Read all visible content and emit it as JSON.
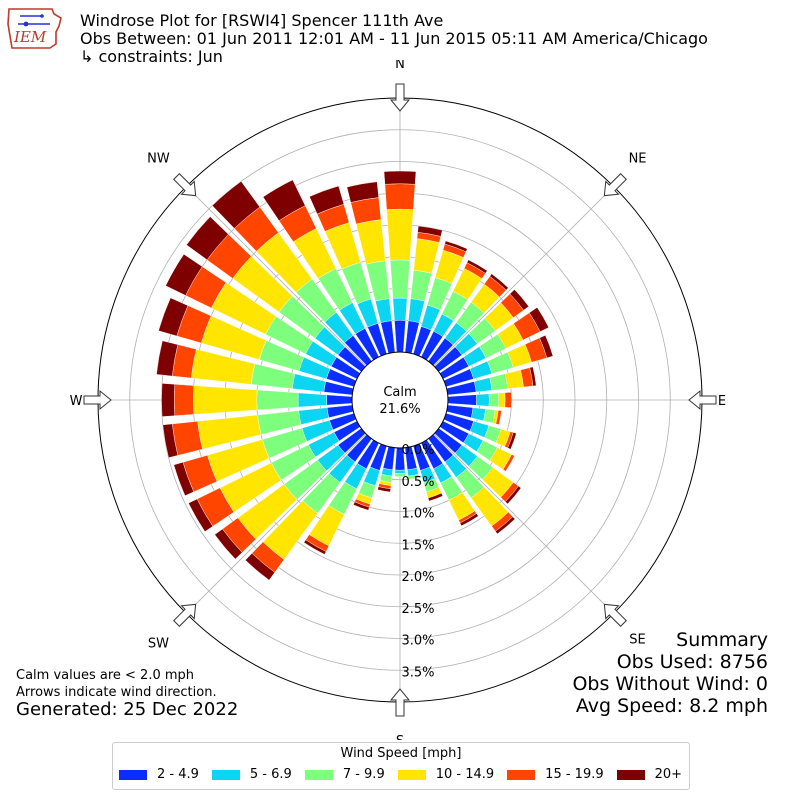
{
  "logo": {
    "text": "IEM"
  },
  "header": {
    "title": "Windrose Plot for [RSWI4] Spencer 111th Ave",
    "obs_between": "Obs Between: 01 Jun 2011 12:01 AM - 11 Jun 2015 05:11 AM America/Chicago",
    "constraints": "↳ constraints: Jun"
  },
  "notes": {
    "calm_note": "Calm values are < 2.0 mph",
    "arrow_note": "Arrows indicate wind direction.",
    "generated": "Generated: 25 Dec 2022"
  },
  "summary": {
    "title": "Summary",
    "obs_used": "Obs Used: 8756",
    "obs_without_wind": "Obs Without Wind: 0",
    "avg_speed": "Avg Speed: 8.2 mph"
  },
  "legend": {
    "title": "Wind Speed [mph]",
    "items": [
      {
        "label": "2 - 4.9",
        "color": "#0b2dff"
      },
      {
        "label": "5 - 6.9",
        "color": "#0bd5f0"
      },
      {
        "label": "7 - 9.9",
        "color": "#7dff7d"
      },
      {
        "label": "10 - 14.9",
        "color": "#ffe500"
      },
      {
        "label": "15 - 19.9",
        "color": "#ff4500"
      },
      {
        "label": "20+",
        "color": "#7f0000"
      }
    ]
  },
  "chart_data": {
    "type": "windrose",
    "calm_label": "Calm",
    "calm_value": "21.6%",
    "directions_compass": [
      "N",
      "NE",
      "E",
      "SE",
      "S",
      "SW",
      "W",
      "NW"
    ],
    "radial_ticks": [
      "0.0%",
      "0.5%",
      "1.0%",
      "1.5%",
      "2.0%",
      "2.5%",
      "3.0%",
      "3.5%"
    ],
    "rmax_percent": 4.0,
    "bin_width_deg": 10,
    "directions_deg": [
      0,
      10,
      20,
      30,
      40,
      50,
      60,
      70,
      80,
      90,
      100,
      110,
      120,
      130,
      140,
      150,
      160,
      170,
      180,
      190,
      200,
      210,
      220,
      230,
      240,
      250,
      260,
      270,
      280,
      290,
      300,
      310,
      320,
      330,
      340,
      350
    ],
    "series": [
      {
        "name": "2 - 4.9",
        "color": "#0b2dff",
        "values": [
          0.5,
          0.5,
          0.45,
          0.45,
          0.45,
          0.45,
          0.45,
          0.45,
          0.45,
          0.45,
          0.4,
          0.45,
          0.45,
          0.45,
          0.45,
          0.45,
          0.4,
          0.35,
          0.35,
          0.35,
          0.4,
          0.45,
          0.45,
          0.45,
          0.4,
          0.4,
          0.4,
          0.4,
          0.45,
          0.45,
          0.45,
          0.45,
          0.5,
          0.5,
          0.5,
          0.5
        ]
      },
      {
        "name": "5 - 6.9",
        "color": "#0bd5f0",
        "values": [
          0.35,
          0.35,
          0.35,
          0.3,
          0.3,
          0.3,
          0.3,
          0.3,
          0.25,
          0.2,
          0.2,
          0.25,
          0.25,
          0.3,
          0.3,
          0.25,
          0.2,
          0.1,
          0.05,
          0.1,
          0.25,
          0.35,
          0.4,
          0.4,
          0.45,
          0.45,
          0.45,
          0.45,
          0.5,
          0.45,
          0.45,
          0.45,
          0.45,
          0.45,
          0.4,
          0.35
        ]
      },
      {
        "name": "7 - 9.9",
        "color": "#7dff7d",
        "values": [
          0.6,
          0.45,
          0.45,
          0.4,
          0.4,
          0.35,
          0.35,
          0.35,
          0.25,
          0.15,
          0.15,
          0.2,
          0.25,
          0.3,
          0.4,
          0.3,
          0.15,
          0.05,
          0.05,
          0.1,
          0.2,
          0.45,
          0.6,
          0.65,
          0.65,
          0.65,
          0.65,
          0.65,
          0.65,
          0.65,
          0.7,
          0.7,
          0.65,
          0.6,
          0.6,
          0.6
        ]
      },
      {
        "name": "10 - 14.9",
        "color": "#ffe500",
        "values": [
          0.8,
          0.5,
          0.45,
          0.4,
          0.35,
          0.35,
          0.3,
          0.3,
          0.25,
          0.1,
          0.05,
          0.15,
          0.25,
          0.4,
          0.55,
          0.35,
          0.1,
          0.0,
          0.0,
          0.05,
          0.1,
          0.55,
          0.9,
          0.9,
          0.9,
          0.9,
          0.95,
          1.0,
          0.95,
          0.95,
          0.95,
          0.9,
          0.9,
          0.7,
          0.65,
          0.65
        ]
      },
      {
        "name": "15 - 19.9",
        "color": "#ff4500",
        "values": [
          0.4,
          0.1,
          0.1,
          0.1,
          0.15,
          0.2,
          0.3,
          0.25,
          0.15,
          0.1,
          0.05,
          0.05,
          0.05,
          0.1,
          0.1,
          0.05,
          0.0,
          0.0,
          0.0,
          0.05,
          0.05,
          0.1,
          0.25,
          0.3,
          0.4,
          0.4,
          0.4,
          0.3,
          0.3,
          0.4,
          0.45,
          0.5,
          0.5,
          0.4,
          0.3,
          0.35
        ]
      },
      {
        "name": "20+",
        "color": "#7f0000",
        "values": [
          0.2,
          0.1,
          0.05,
          0.05,
          0.05,
          0.1,
          0.15,
          0.1,
          0.05,
          0.0,
          0.0,
          0.05,
          0.0,
          0.05,
          0.05,
          0.05,
          0.05,
          0.0,
          0.0,
          0.05,
          0.05,
          0.05,
          0.15,
          0.15,
          0.15,
          0.15,
          0.15,
          0.2,
          0.25,
          0.3,
          0.35,
          0.4,
          0.5,
          0.45,
          0.3,
          0.25
        ]
      }
    ]
  }
}
